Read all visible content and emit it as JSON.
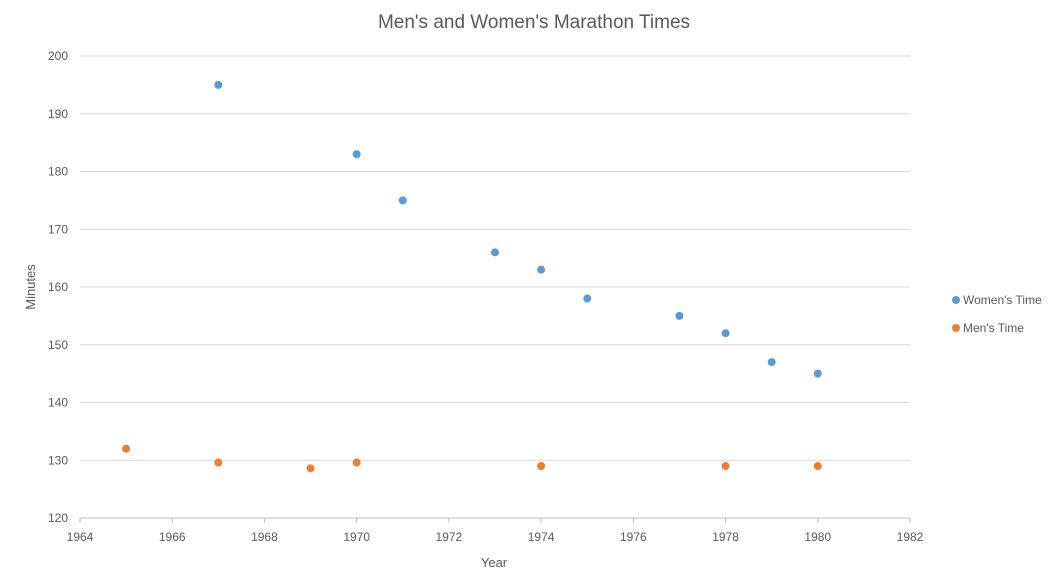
{
  "chart_data": {
    "type": "scatter",
    "title": "Men's and Women's Marathon Times",
    "xlabel": "Year",
    "ylabel": "Minutes",
    "xlim": [
      1964,
      1982
    ],
    "ylim": [
      120,
      200
    ],
    "xticks": [
      1964,
      1966,
      1968,
      1970,
      1972,
      1974,
      1976,
      1978,
      1980,
      1982
    ],
    "yticks": [
      120,
      130,
      140,
      150,
      160,
      170,
      180,
      190,
      200
    ],
    "grid": "horizontal",
    "legend_position": "right",
    "series": [
      {
        "name": "Women's Time",
        "color": "#5b9bd5",
        "x": [
          1967,
          1970,
          1971,
          1973,
          1974,
          1975,
          1977,
          1978,
          1979,
          1980
        ],
        "y": [
          195,
          183,
          175,
          166,
          163,
          158,
          155,
          152,
          147,
          145
        ]
      },
      {
        "name": "Men's Time",
        "color": "#ed7d31",
        "x": [
          1965,
          1967,
          1969,
          1970,
          1974,
          1978,
          1980
        ],
        "y": [
          132,
          129.6,
          128.6,
          129.6,
          129,
          129,
          129
        ]
      }
    ]
  }
}
